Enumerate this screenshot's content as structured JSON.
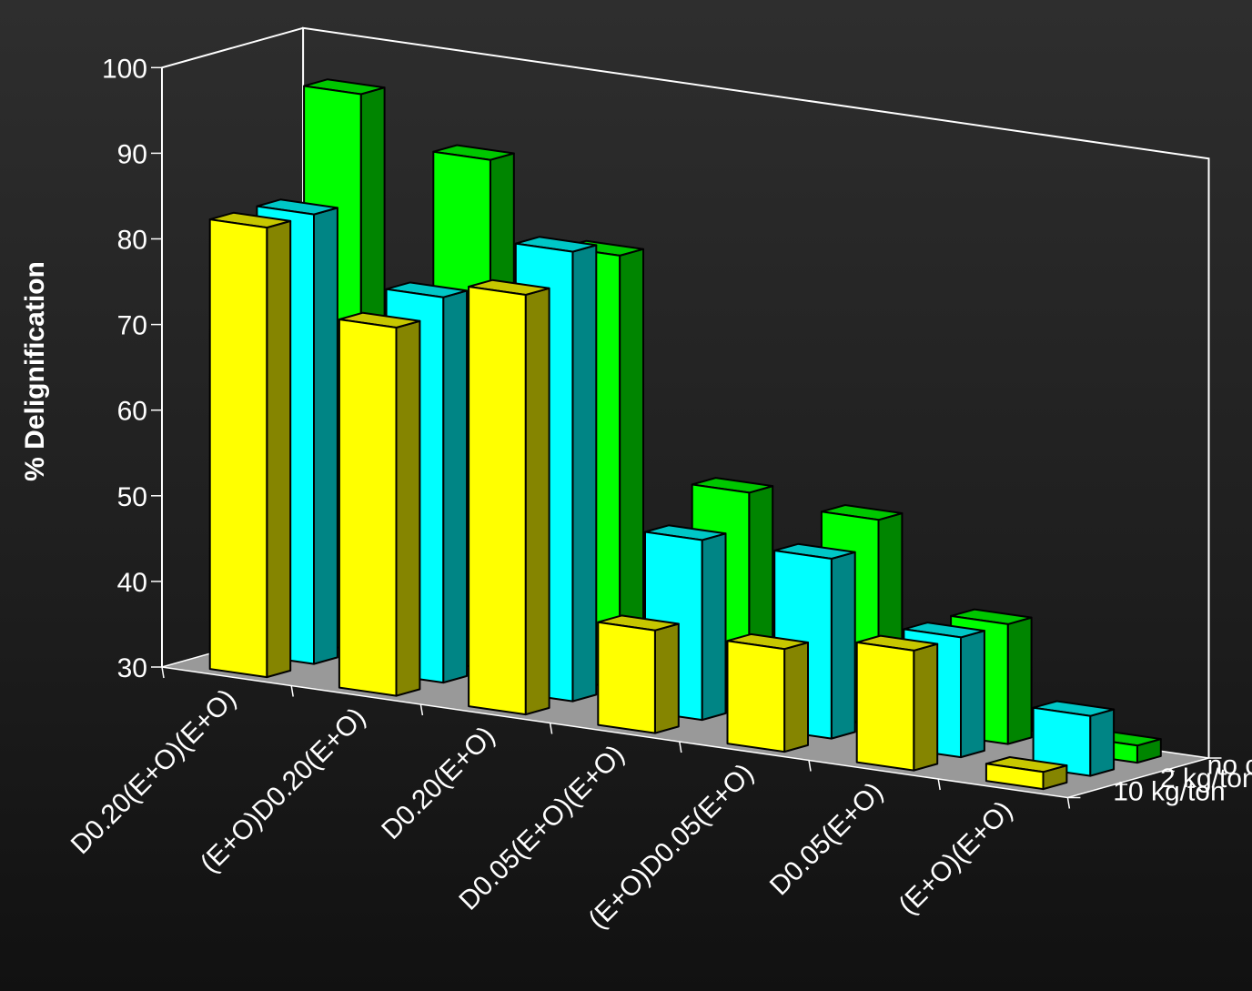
{
  "chart_data": {
    "type": "bar",
    "subtype": "3d-clustered-column",
    "title": "",
    "xlabel": "",
    "ylabel": "% Delignification",
    "ylim": [
      30,
      100
    ],
    "yticks": [
      30,
      40,
      50,
      60,
      70,
      80,
      90,
      100
    ],
    "grid": false,
    "categories": [
      "D0.20(E+O)(E+O)",
      "(E+O)D0.20(E+O)",
      "D0.20(E+O)",
      "D0.05(E+O)(E+O)",
      "(E+O)D0.05(E+O)",
      "D0.05(E+O)",
      "(E+O)(E+O)"
    ],
    "series": [
      {
        "name": "10 kg/ton",
        "color": "#ffff00",
        "values": [
          82.5,
          73,
          79,
          42,
          42,
          44,
          32
        ]
      },
      {
        "name": "2 kg/ton",
        "color": "#00ffff",
        "values": [
          82.5,
          75,
          82.5,
          51,
          51,
          44,
          37
        ]
      },
      {
        "name": "no carryover",
        "color": "#00ff00",
        "values": [
          95,
          89.5,
          80.5,
          55,
          54,
          44,
          32
        ]
      }
    ],
    "floor_color": "#999999"
  }
}
